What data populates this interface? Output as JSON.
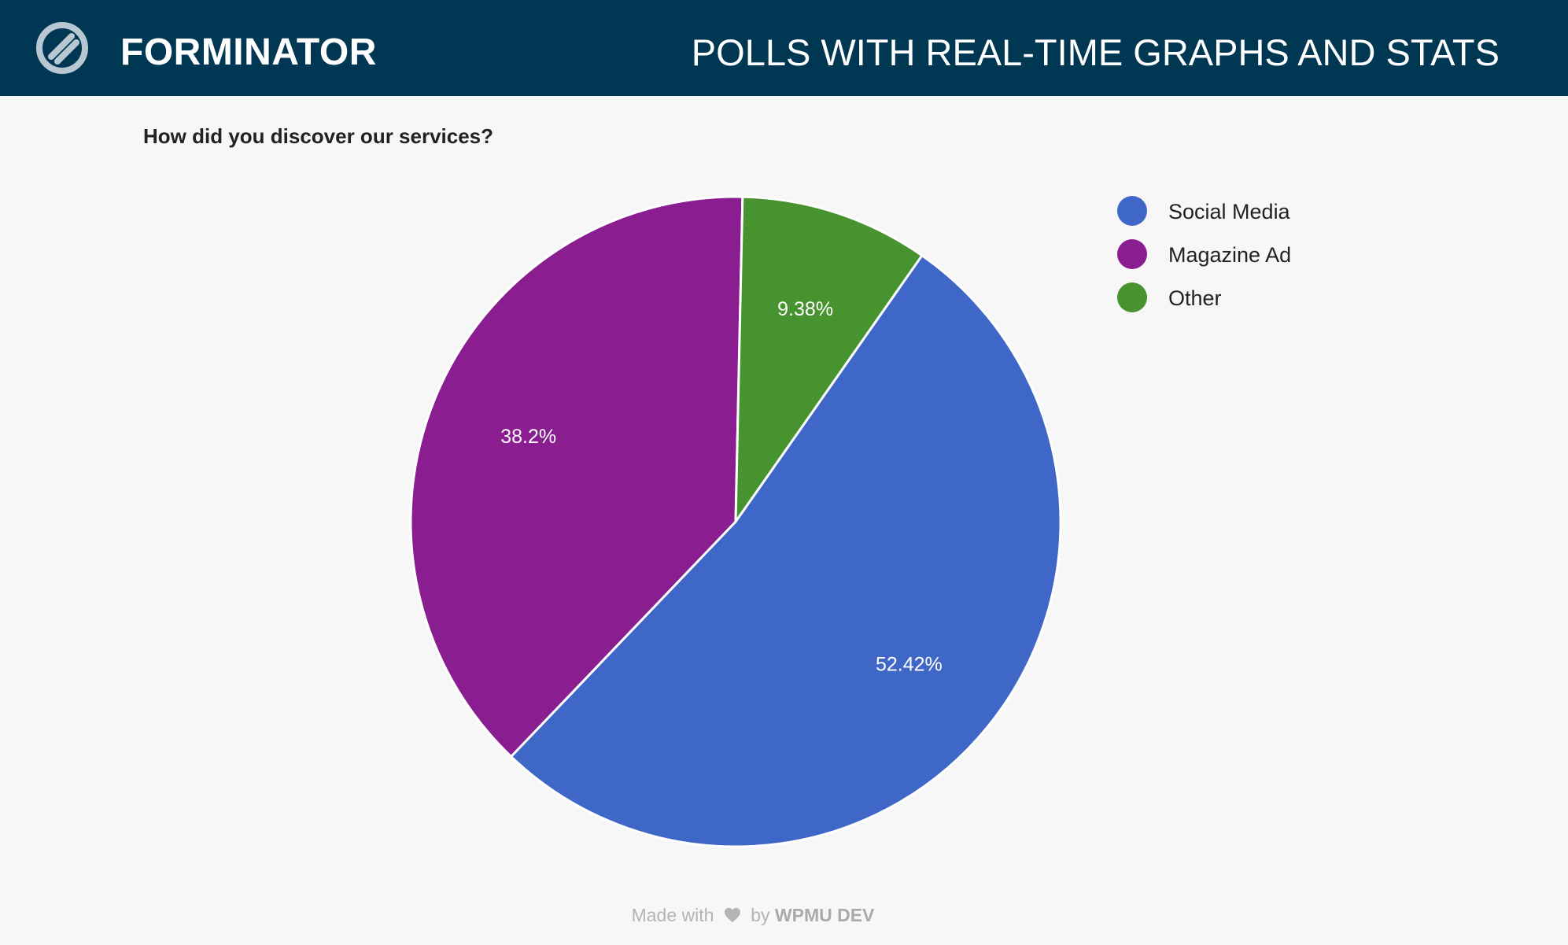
{
  "header": {
    "brand": "FORMINATOR",
    "tagline": "POLLS WITH REAL-TIME GRAPHS AND STATS",
    "background": "#003854"
  },
  "poll": {
    "question": "How did you discover our services?"
  },
  "chart_data": {
    "type": "pie",
    "title": "How did you discover our services?",
    "categories": [
      "Social Media",
      "Magazine Ad",
      "Other"
    ],
    "values": [
      52.42,
      38.2,
      9.38
    ],
    "labels": [
      "52.42%",
      "38.2%",
      "9.38%"
    ],
    "colors": [
      "#3f67c7",
      "#8a1e91",
      "#469330"
    ],
    "legend": "right"
  },
  "footer": {
    "made_with": "Made with",
    "by": "by",
    "company": "WPMU DEV"
  },
  "icons": {
    "logo": "forminator-logo-icon",
    "heart": "heart-icon"
  }
}
